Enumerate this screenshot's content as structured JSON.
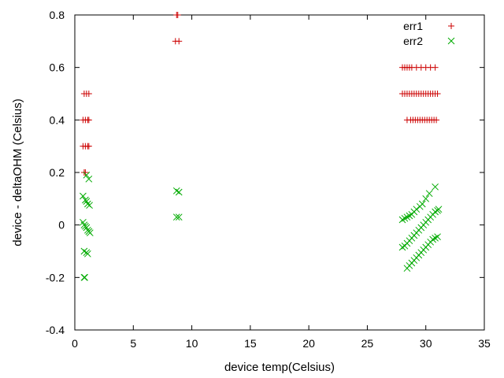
{
  "chart_data": {
    "type": "scatter",
    "title": "",
    "xlabel": "device temp(Celsius)",
    "ylabel": "device - deltaOHM (Celsius)",
    "xlim": [
      0,
      35
    ],
    "ylim": [
      -0.4,
      0.8
    ],
    "xticks": [
      0,
      5,
      10,
      15,
      20,
      25,
      30,
      35
    ],
    "yticks": [
      -0.4,
      -0.2,
      0,
      0.2,
      0.4,
      0.6,
      0.8
    ],
    "xtick_labels": [
      "0",
      "5",
      "10",
      "15",
      "20",
      "25",
      "30",
      "35"
    ],
    "ytick_labels": [
      "-0.4",
      "-0.2",
      "0",
      "0.2",
      "0.4",
      "0.6",
      "0.8"
    ],
    "grid": false,
    "legend_position": "top-right",
    "series": [
      {
        "name": "err1",
        "marker": "plus",
        "color": "#cc0000",
        "points": [
          [
            0.8,
            0.5
          ],
          [
            1.0,
            0.5
          ],
          [
            1.2,
            0.5
          ],
          [
            0.7,
            0.4
          ],
          [
            0.9,
            0.4
          ],
          [
            1.1,
            0.4
          ],
          [
            1.2,
            0.4
          ],
          [
            0.7,
            0.3
          ],
          [
            0.9,
            0.3
          ],
          [
            1.1,
            0.3
          ],
          [
            1.2,
            0.3
          ],
          [
            0.8,
            0.2
          ],
          [
            0.9,
            0.2
          ],
          [
            8.7,
            0.8
          ],
          [
            8.8,
            0.8
          ],
          [
            8.6,
            0.7
          ],
          [
            8.9,
            0.7
          ],
          [
            28.0,
            0.6
          ],
          [
            28.2,
            0.6
          ],
          [
            28.4,
            0.6
          ],
          [
            28.6,
            0.6
          ],
          [
            28.8,
            0.6
          ],
          [
            29.2,
            0.6
          ],
          [
            29.6,
            0.6
          ],
          [
            30.0,
            0.6
          ],
          [
            30.4,
            0.6
          ],
          [
            30.8,
            0.6
          ],
          [
            28.0,
            0.5
          ],
          [
            28.2,
            0.5
          ],
          [
            28.4,
            0.5
          ],
          [
            28.6,
            0.5
          ],
          [
            28.8,
            0.5
          ],
          [
            29.0,
            0.5
          ],
          [
            29.2,
            0.5
          ],
          [
            29.4,
            0.5
          ],
          [
            29.6,
            0.5
          ],
          [
            29.8,
            0.5
          ],
          [
            30.0,
            0.5
          ],
          [
            30.2,
            0.5
          ],
          [
            30.4,
            0.5
          ],
          [
            30.6,
            0.5
          ],
          [
            30.8,
            0.5
          ],
          [
            31.0,
            0.5
          ],
          [
            28.4,
            0.4
          ],
          [
            28.7,
            0.4
          ],
          [
            28.9,
            0.4
          ],
          [
            29.1,
            0.4
          ],
          [
            29.3,
            0.4
          ],
          [
            29.5,
            0.4
          ],
          [
            29.7,
            0.4
          ],
          [
            29.9,
            0.4
          ],
          [
            30.1,
            0.4
          ],
          [
            30.3,
            0.4
          ],
          [
            30.5,
            0.4
          ],
          [
            30.7,
            0.4
          ],
          [
            30.9,
            0.4
          ]
        ]
      },
      {
        "name": "err2",
        "marker": "cross",
        "color": "#00aa00",
        "points": [
          [
            1.0,
            0.19
          ],
          [
            1.2,
            0.175
          ],
          [
            0.7,
            0.11
          ],
          [
            0.9,
            0.095
          ],
          [
            1.0,
            0.09
          ],
          [
            1.1,
            0.08
          ],
          [
            1.25,
            0.075
          ],
          [
            0.7,
            0.01
          ],
          [
            0.8,
            0.0
          ],
          [
            0.9,
            -0.005
          ],
          [
            1.0,
            -0.01
          ],
          [
            1.1,
            -0.02
          ],
          [
            1.2,
            -0.025
          ],
          [
            1.3,
            -0.03
          ],
          [
            0.8,
            -0.1
          ],
          [
            1.0,
            -0.105
          ],
          [
            1.1,
            -0.11
          ],
          [
            0.8,
            -0.2
          ],
          [
            0.85,
            -0.2
          ],
          [
            8.7,
            0.13
          ],
          [
            8.9,
            0.125
          ],
          [
            8.7,
            0.03
          ],
          [
            8.9,
            0.03
          ],
          [
            28.0,
            0.02
          ],
          [
            28.2,
            0.025
          ],
          [
            28.4,
            0.03
          ],
          [
            28.6,
            0.035
          ],
          [
            28.8,
            0.04
          ],
          [
            29.0,
            0.05
          ],
          [
            29.2,
            0.06
          ],
          [
            29.5,
            0.07
          ],
          [
            29.7,
            0.08
          ],
          [
            30.0,
            0.1
          ],
          [
            30.3,
            0.12
          ],
          [
            30.8,
            0.145
          ],
          [
            28.0,
            -0.085
          ],
          [
            28.2,
            -0.08
          ],
          [
            28.4,
            -0.07
          ],
          [
            28.6,
            -0.06
          ],
          [
            28.8,
            -0.05
          ],
          [
            29.0,
            -0.04
          ],
          [
            29.2,
            -0.03
          ],
          [
            29.4,
            -0.02
          ],
          [
            29.6,
            -0.01
          ],
          [
            29.8,
            0.0
          ],
          [
            30.0,
            0.01
          ],
          [
            30.2,
            0.02
          ],
          [
            30.4,
            0.03
          ],
          [
            30.6,
            0.04
          ],
          [
            30.8,
            0.05
          ],
          [
            31.0,
            0.055
          ],
          [
            31.1,
            0.06
          ],
          [
            28.4,
            -0.165
          ],
          [
            28.6,
            -0.155
          ],
          [
            28.8,
            -0.145
          ],
          [
            29.0,
            -0.135
          ],
          [
            29.2,
            -0.125
          ],
          [
            29.4,
            -0.115
          ],
          [
            29.6,
            -0.105
          ],
          [
            29.8,
            -0.095
          ],
          [
            30.0,
            -0.085
          ],
          [
            30.2,
            -0.075
          ],
          [
            30.4,
            -0.065
          ],
          [
            30.6,
            -0.055
          ],
          [
            30.8,
            -0.05
          ],
          [
            31.0,
            -0.045
          ]
        ]
      }
    ]
  }
}
